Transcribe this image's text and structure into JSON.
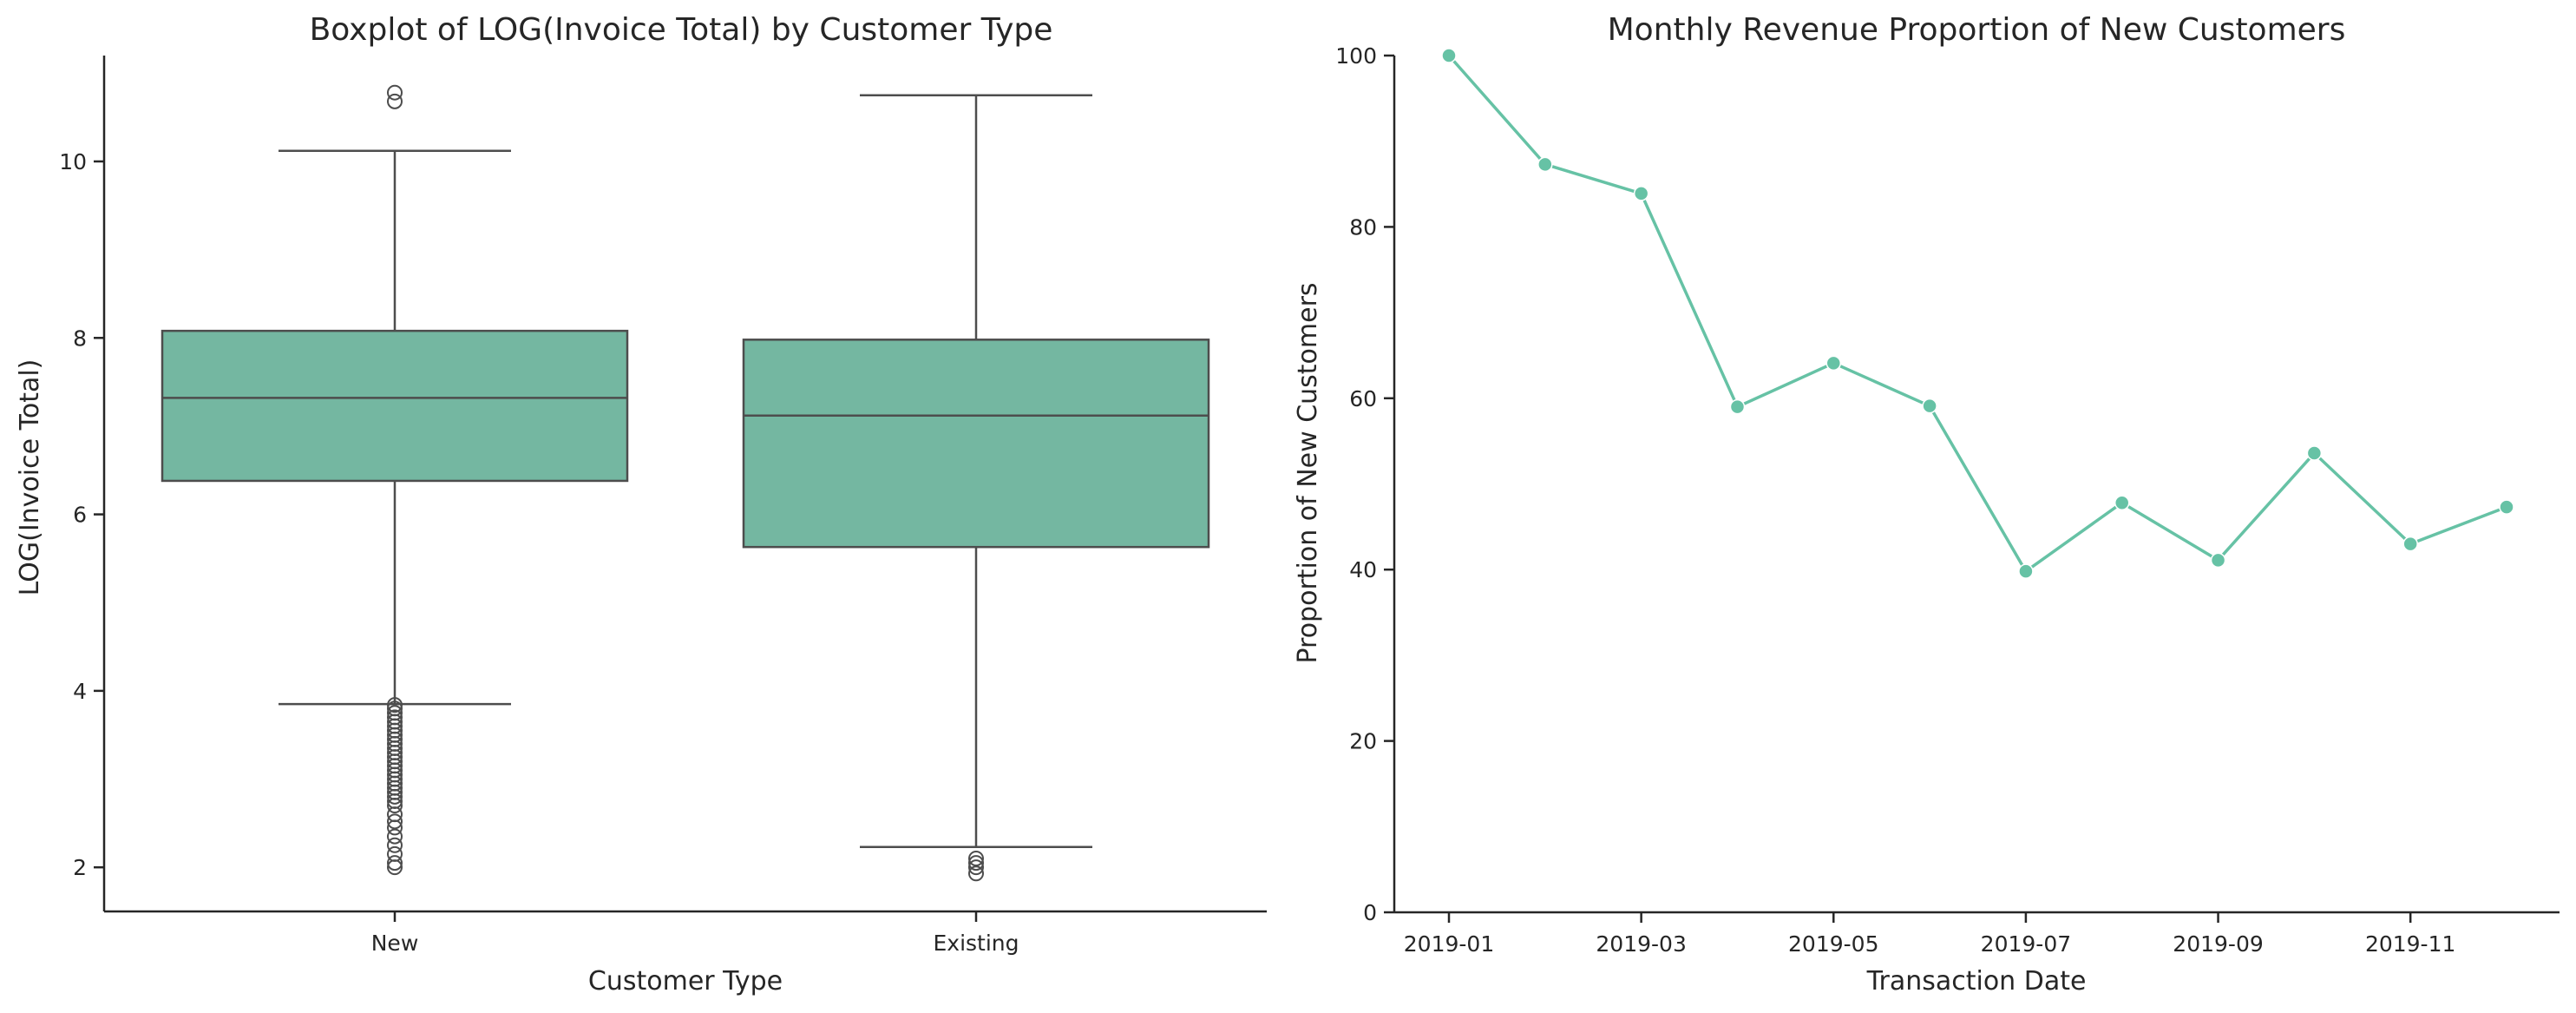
{
  "colors": {
    "box_fill": "#74b7a1",
    "line": "#66c2a5",
    "box_edge": "#4d4d4d",
    "axis": "#262626",
    "background": "#ffffff"
  },
  "chart_data": [
    {
      "type": "box",
      "title": "Boxplot of LOG(Invoice Total) by Customer Type",
      "xlabel": "Customer Type",
      "ylabel": "LOG(Invoice Total)",
      "ylim": [
        1.5,
        11.2
      ],
      "yticks": [
        2,
        4,
        6,
        8,
        10
      ],
      "grid": false,
      "categories": [
        "New",
        "Existing"
      ],
      "boxes": [
        {
          "category": "New",
          "whisker_low": 3.85,
          "q1": 6.38,
          "median": 7.32,
          "q3": 8.08,
          "whisker_high": 10.12,
          "outliers": [
            10.78,
            10.68,
            3.84,
            3.8,
            3.75,
            3.7,
            3.65,
            3.6,
            3.55,
            3.5,
            3.45,
            3.4,
            3.35,
            3.3,
            3.25,
            3.2,
            3.15,
            3.1,
            3.05,
            3.0,
            2.95,
            2.9,
            2.85,
            2.8,
            2.75,
            2.7,
            2.6,
            2.52,
            2.45,
            2.35,
            2.25,
            2.15,
            2.05,
            2.0
          ]
        },
        {
          "category": "Existing",
          "whisker_low": 2.23,
          "q1": 5.63,
          "median": 7.12,
          "q3": 7.98,
          "whisker_high": 10.75,
          "outliers": [
            2.1,
            2.05,
            2.0,
            1.93
          ]
        }
      ]
    },
    {
      "type": "line",
      "title": "Monthly Revenue Proportion of New Customers",
      "xlabel": "Transaction Date",
      "ylabel": "Proportion of New Customers",
      "ylim": [
        0,
        100
      ],
      "yticks": [
        0,
        20,
        40,
        60,
        80,
        100
      ],
      "grid": false,
      "markers": true,
      "x": [
        "2019-01",
        "2019-02",
        "2019-03",
        "2019-04",
        "2019-05",
        "2019-06",
        "2019-07",
        "2019-08",
        "2019-09",
        "2019-10",
        "2019-11",
        "2019-12"
      ],
      "xtick_labels": [
        "2019-01",
        "2019-03",
        "2019-05",
        "2019-07",
        "2019-09",
        "2019-11"
      ],
      "values": [
        100,
        87.3,
        83.9,
        59.0,
        64.1,
        59.1,
        39.8,
        47.8,
        41.1,
        53.6,
        43.0,
        47.3
      ]
    }
  ]
}
